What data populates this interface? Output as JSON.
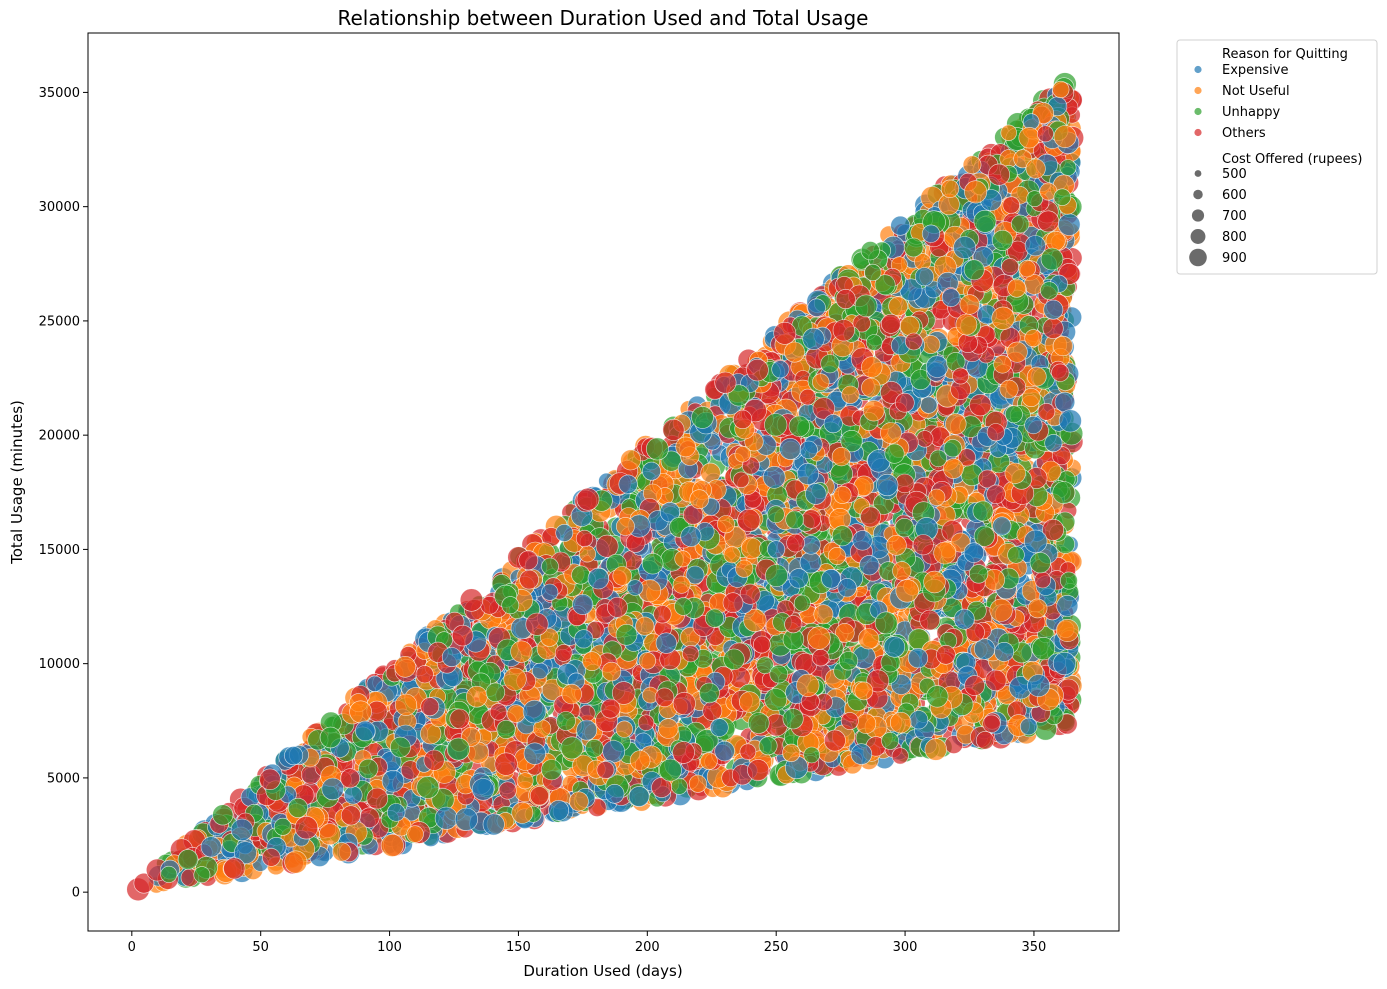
{
  "chart_data": {
    "type": "scatter",
    "title": "Relationship between Duration Used and Total Usage",
    "xlabel": "Duration Used (days)",
    "ylabel": "Total Usage (minutes)",
    "xlim": [
      -17,
      383
    ],
    "ylim": [
      -1700,
      37600
    ],
    "x_ticks": [
      0,
      50,
      100,
      150,
      200,
      250,
      300,
      350
    ],
    "y_ticks": [
      0,
      5000,
      10000,
      15000,
      20000,
      25000,
      30000,
      35000
    ],
    "grid": false,
    "legend_placement": "outside-top-right",
    "point_alpha": 0.7,
    "sampling": {
      "count": 6500,
      "x_range": [
        0,
        365
      ],
      "y_per_x_range": [
        20,
        98
      ],
      "size_range": [
        450,
        950
      ]
    },
    "hue": {
      "title": "Reason for Quitting",
      "categories": [
        {
          "name": "Expensive",
          "color": "#1f77b4"
        },
        {
          "name": "Not Useful",
          "color": "#ff7f0e"
        },
        {
          "name": "Unhappy",
          "color": "#2ca02c"
        },
        {
          "name": "Others",
          "color": "#d62728"
        }
      ]
    },
    "size": {
      "title": "Cost Offered (rupees)",
      "values": [
        500,
        600,
        700,
        800,
        900
      ],
      "color": "#6b6b6b"
    }
  }
}
